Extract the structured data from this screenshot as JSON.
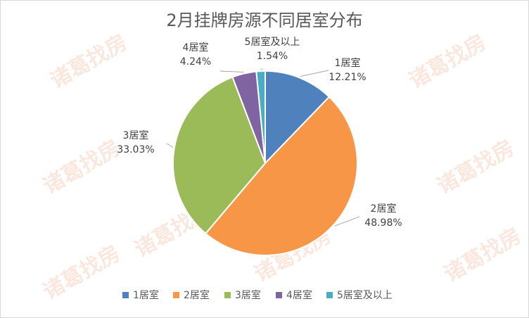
{
  "watermark": "诸葛找房",
  "chart_data": {
    "type": "pie",
    "title": "2月挂牌房源不同居室分布",
    "categories": [
      "1居室",
      "2居室",
      "3居室",
      "4居室",
      "5居室及以上"
    ],
    "values": [
      12.21,
      48.98,
      33.03,
      4.24,
      1.54
    ],
    "labels": [
      "12.21%",
      "48.98%",
      "33.03%",
      "4.24%",
      "1.54%"
    ],
    "colors": [
      "#4f81bd",
      "#f79646",
      "#9bbb59",
      "#8064a2",
      "#4bacc6"
    ],
    "legend_position": "bottom"
  }
}
